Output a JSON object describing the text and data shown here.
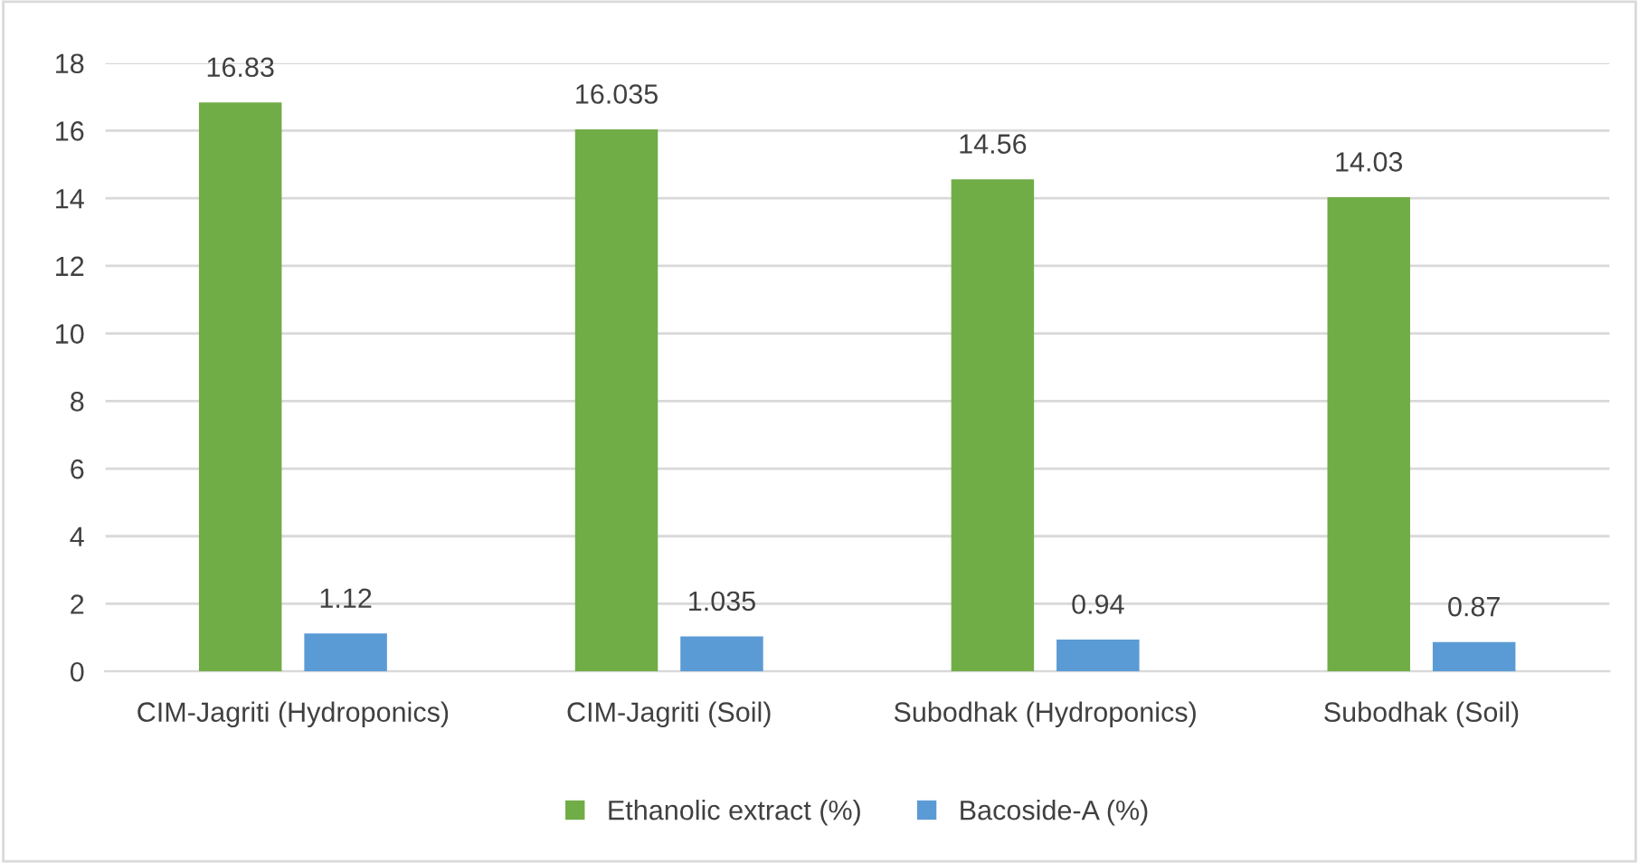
{
  "chart_data": {
    "type": "bar",
    "categories": [
      "CIM-Jagriti (Hydroponics)",
      "CIM-Jagriti (Soil)",
      "Subodhak (Hydroponics)",
      "Subodhak (Soil)"
    ],
    "series": [
      {
        "name": "Ethanolic extract (%)",
        "color": "#70ad47",
        "values": [
          16.83,
          16.035,
          14.56,
          14.03
        ]
      },
      {
        "name": "Bacoside-A (%)",
        "color": "#5b9bd5",
        "values": [
          1.12,
          1.035,
          0.94,
          0.87
        ]
      }
    ],
    "ylim": [
      0,
      18
    ],
    "yticks": [
      0,
      2,
      4,
      6,
      8,
      10,
      12,
      14,
      16,
      18
    ],
    "grid": "y",
    "legend": "bottom",
    "data_labels": true
  }
}
